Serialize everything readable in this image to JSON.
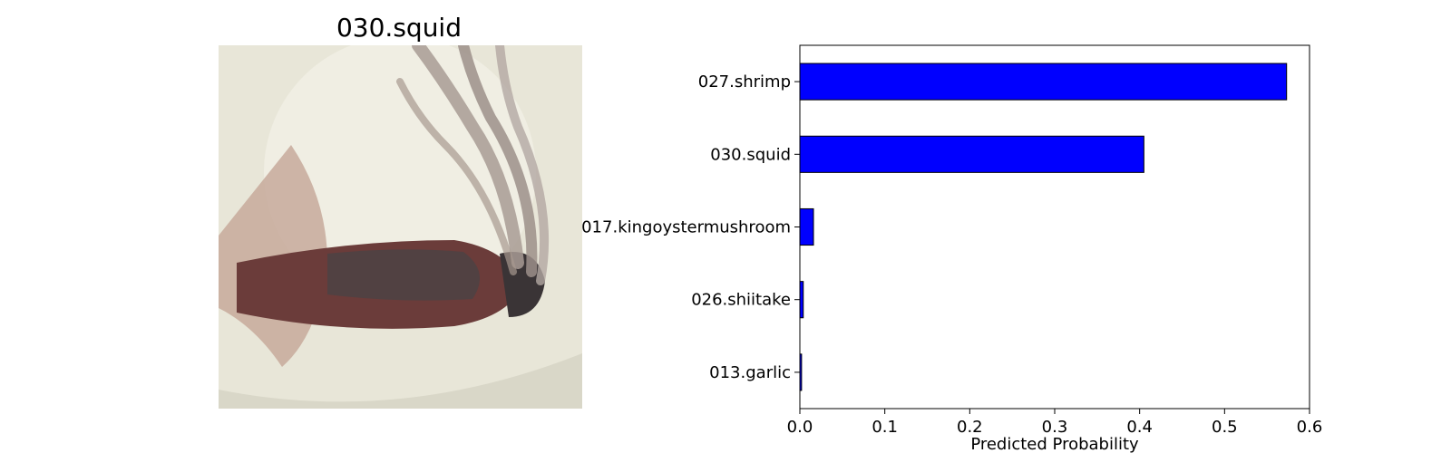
{
  "image_panel": {
    "title": "030.squid",
    "palette": {
      "plate": "#ecebdf",
      "plate_shadow": "#d9d7c8",
      "squid_body": "#6b3c3a",
      "squid_dark": "#3a3436",
      "fin": "#c9ad9f",
      "tentacle": "#a89b94"
    }
  },
  "chart_data": {
    "type": "bar",
    "orientation": "horizontal",
    "categories": [
      "027.shrimp",
      "030.squid",
      "017.kingoystermushroom",
      "026.shiitake",
      "013.garlic"
    ],
    "values": [
      0.573,
      0.405,
      0.016,
      0.004,
      0.002
    ],
    "xlabel": "Predicted Probability",
    "ylabel": "",
    "xlim": [
      0,
      0.6
    ],
    "xticks": [
      "0.0",
      "0.1",
      "0.2",
      "0.3",
      "0.4",
      "0.5",
      "0.6"
    ],
    "bar_color": "#0000ff",
    "edge_color": "#000000",
    "grid": false,
    "legend": "none"
  }
}
